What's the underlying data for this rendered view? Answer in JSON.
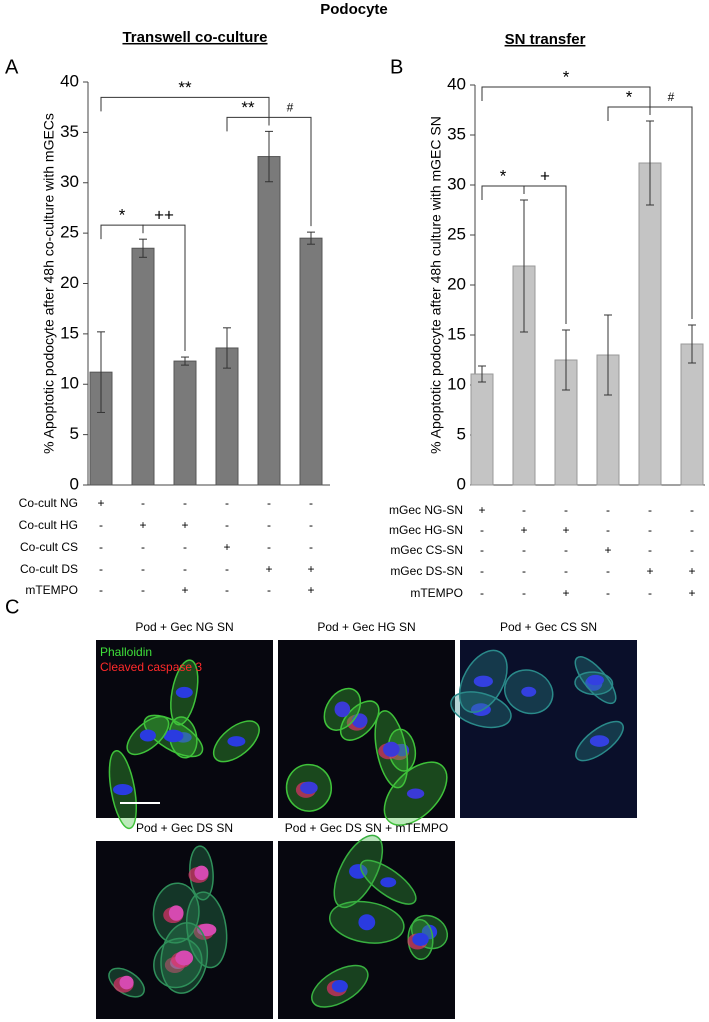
{
  "title": "Podocyte",
  "chart_data": [
    {
      "type": "bar",
      "panel": "A",
      "title": "Transwell co-culture",
      "y_label": "% Apoptotic podocyte after 48h co-culture with mGECs",
      "categories": [
        null,
        null,
        null,
        null,
        null,
        null
      ],
      "values": [
        11.2,
        23.5,
        12.3,
        13.6,
        32.6,
        24.5
      ],
      "errors": [
        4.0,
        0.9,
        0.4,
        2.0,
        2.5,
        0.6
      ],
      "color": "#7a7a7a",
      "ylim": [
        0,
        40
      ],
      "yticks": [
        0,
        5,
        10,
        15,
        20,
        25,
        30,
        35,
        40
      ],
      "annotations": [
        "**",
        "**",
        "#",
        "*",
        "++"
      ],
      "treatments": [
        {
          "name": "Co-cult NG",
          "signs": [
            "+",
            "-",
            "-",
            "-",
            "-",
            "-"
          ]
        },
        {
          "name": "Co-cult HG",
          "signs": [
            "-",
            "+",
            "+",
            "-",
            "-",
            "-"
          ]
        },
        {
          "name": "Co-cult CS",
          "signs": [
            "-",
            "-",
            "-",
            "+",
            "-",
            "-"
          ]
        },
        {
          "name": "Co-cult DS",
          "signs": [
            "-",
            "-",
            "-",
            "-",
            "+",
            "+"
          ]
        },
        {
          "name": "mTEMPO",
          "signs": [
            "-",
            "-",
            "+",
            "-",
            "-",
            "+"
          ]
        }
      ]
    },
    {
      "type": "bar",
      "panel": "B",
      "title": "SN transfer",
      "y_label": "% Apoptotic podocyte after 48h culture with mGEC SN",
      "categories": [
        null,
        null,
        null,
        null,
        null,
        null
      ],
      "values": [
        11.1,
        21.9,
        12.5,
        13.0,
        32.2,
        14.1
      ],
      "errors": [
        0.8,
        6.6,
        3.0,
        4.0,
        4.2,
        1.9
      ],
      "color": "#c4c4c4",
      "ylim": [
        0,
        40
      ],
      "yticks": [
        0,
        5,
        10,
        15,
        20,
        25,
        30,
        35,
        40
      ],
      "annotations": [
        "*",
        "*",
        "+",
        "*",
        "#"
      ],
      "treatments": [
        {
          "name": "mGec NG-SN",
          "signs": [
            "+",
            "-",
            "-",
            "-",
            "-",
            "-"
          ]
        },
        {
          "name": "mGec HG-SN",
          "signs": [
            "-",
            "+",
            "+",
            "-",
            "-",
            "-"
          ]
        },
        {
          "name": "mGec CS-SN",
          "signs": [
            "-",
            "-",
            "-",
            "+",
            "-",
            "-"
          ]
        },
        {
          "name": "mGec DS-SN",
          "signs": [
            "-",
            "-",
            "-",
            "-",
            "+",
            "+"
          ]
        },
        {
          "name": "mTEMPO",
          "signs": [
            "-",
            "-",
            "+",
            "-",
            "-",
            "+"
          ]
        }
      ]
    }
  ],
  "panel_c": {
    "panel": "C",
    "stains": [
      "Phalloidin",
      "Cleaved caspase 3"
    ],
    "images": [
      "Pod + Gec NG SN",
      "Pod + Gec HG SN",
      "Pod + Gec CS SN",
      "Pod + Gec DS SN",
      "Pod + Gec DS SN + mTEMPO"
    ]
  }
}
